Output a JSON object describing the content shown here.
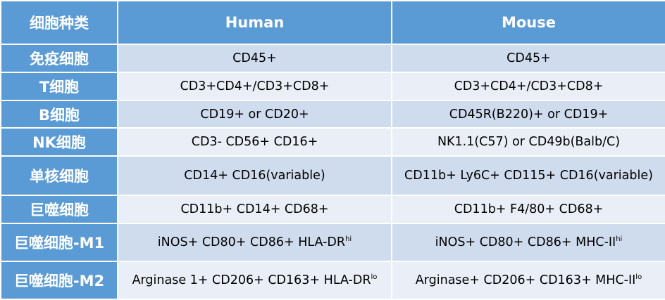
{
  "header": {
    "cell_type": "细胞种类",
    "human": "Human",
    "mouse": "Mouse"
  },
  "rows": [
    {
      "cell": "免疫细胞",
      "human": "CD45+",
      "human_sup": "",
      "mouse": "CD45+",
      "mouse_sup": ""
    },
    {
      "cell": "T细胞",
      "human": "CD3+CD4+/CD3+CD8+",
      "human_sup": "",
      "mouse": "CD3+CD4+/CD3+CD8+",
      "mouse_sup": ""
    },
    {
      "cell": "B细胞",
      "human": "CD19+ or CD20+",
      "human_sup": "",
      "mouse": "CD45R(B220)+ or CD19+",
      "mouse_sup": ""
    },
    {
      "cell": "NK细胞",
      "human": "CD3- CD56+ CD16+",
      "human_sup": "",
      "mouse": "NK1.1(C57) or CD49b(Balb/C)",
      "mouse_sup": ""
    },
    {
      "cell": "单核细胞",
      "human": "CD14+ CD16(variable)",
      "human_sup": "",
      "mouse": "CD11b+ Ly6C+ CD115+ CD16(variable)",
      "mouse_sup": ""
    },
    {
      "cell": "巨噬细胞",
      "human": "CD11b+ CD14+ CD68+",
      "human_sup": "",
      "mouse": "CD11b+ F4/80+ CD68+",
      "mouse_sup": ""
    },
    {
      "cell": "巨噬细胞-M1",
      "human": "iNOS+ CD80+ CD86+ HLA-DR",
      "human_sup": "hi",
      "mouse": "iNOS+ CD80+ CD86+ MHC-II",
      "mouse_sup": "hi"
    },
    {
      "cell": "巨噬细胞-M2",
      "human": "Arginase 1+ CD206+ CD163+ HLA-DR",
      "human_sup": "lo",
      "mouse": "Arginase+ CD206+ CD163+ MHC-II",
      "mouse_sup": "lo"
    }
  ],
  "colors": {
    "header": "#5b9bd5",
    "row_odd": "#cfdcee",
    "row_even": "#e9eef7"
  }
}
